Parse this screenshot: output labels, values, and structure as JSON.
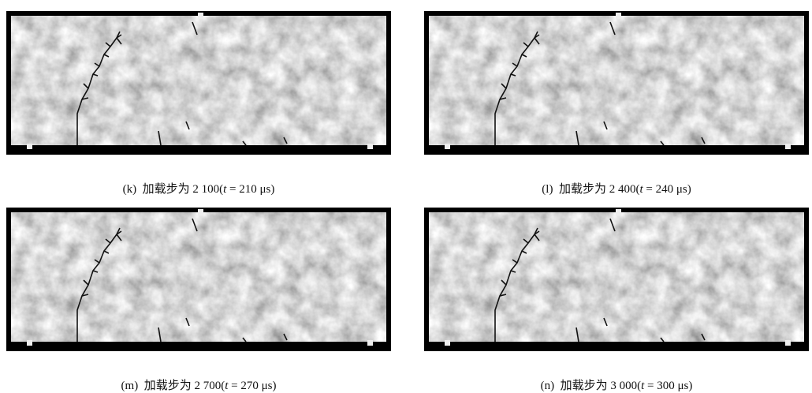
{
  "panels": [
    {
      "prefix": "(k)  加载步为 2 100(",
      "var": "t",
      "suffix": " = 210 μs)"
    },
    {
      "prefix": "(l)  加载步为 2 400(",
      "var": "t",
      "suffix": " = 240 μs)"
    },
    {
      "prefix": "(m)  加载步为 2 700(",
      "var": "t",
      "suffix": " = 270 μs)"
    },
    {
      "prefix": "(n)  加载步为 3 000(",
      "var": "t",
      "suffix": " = 300 μs)"
    }
  ]
}
